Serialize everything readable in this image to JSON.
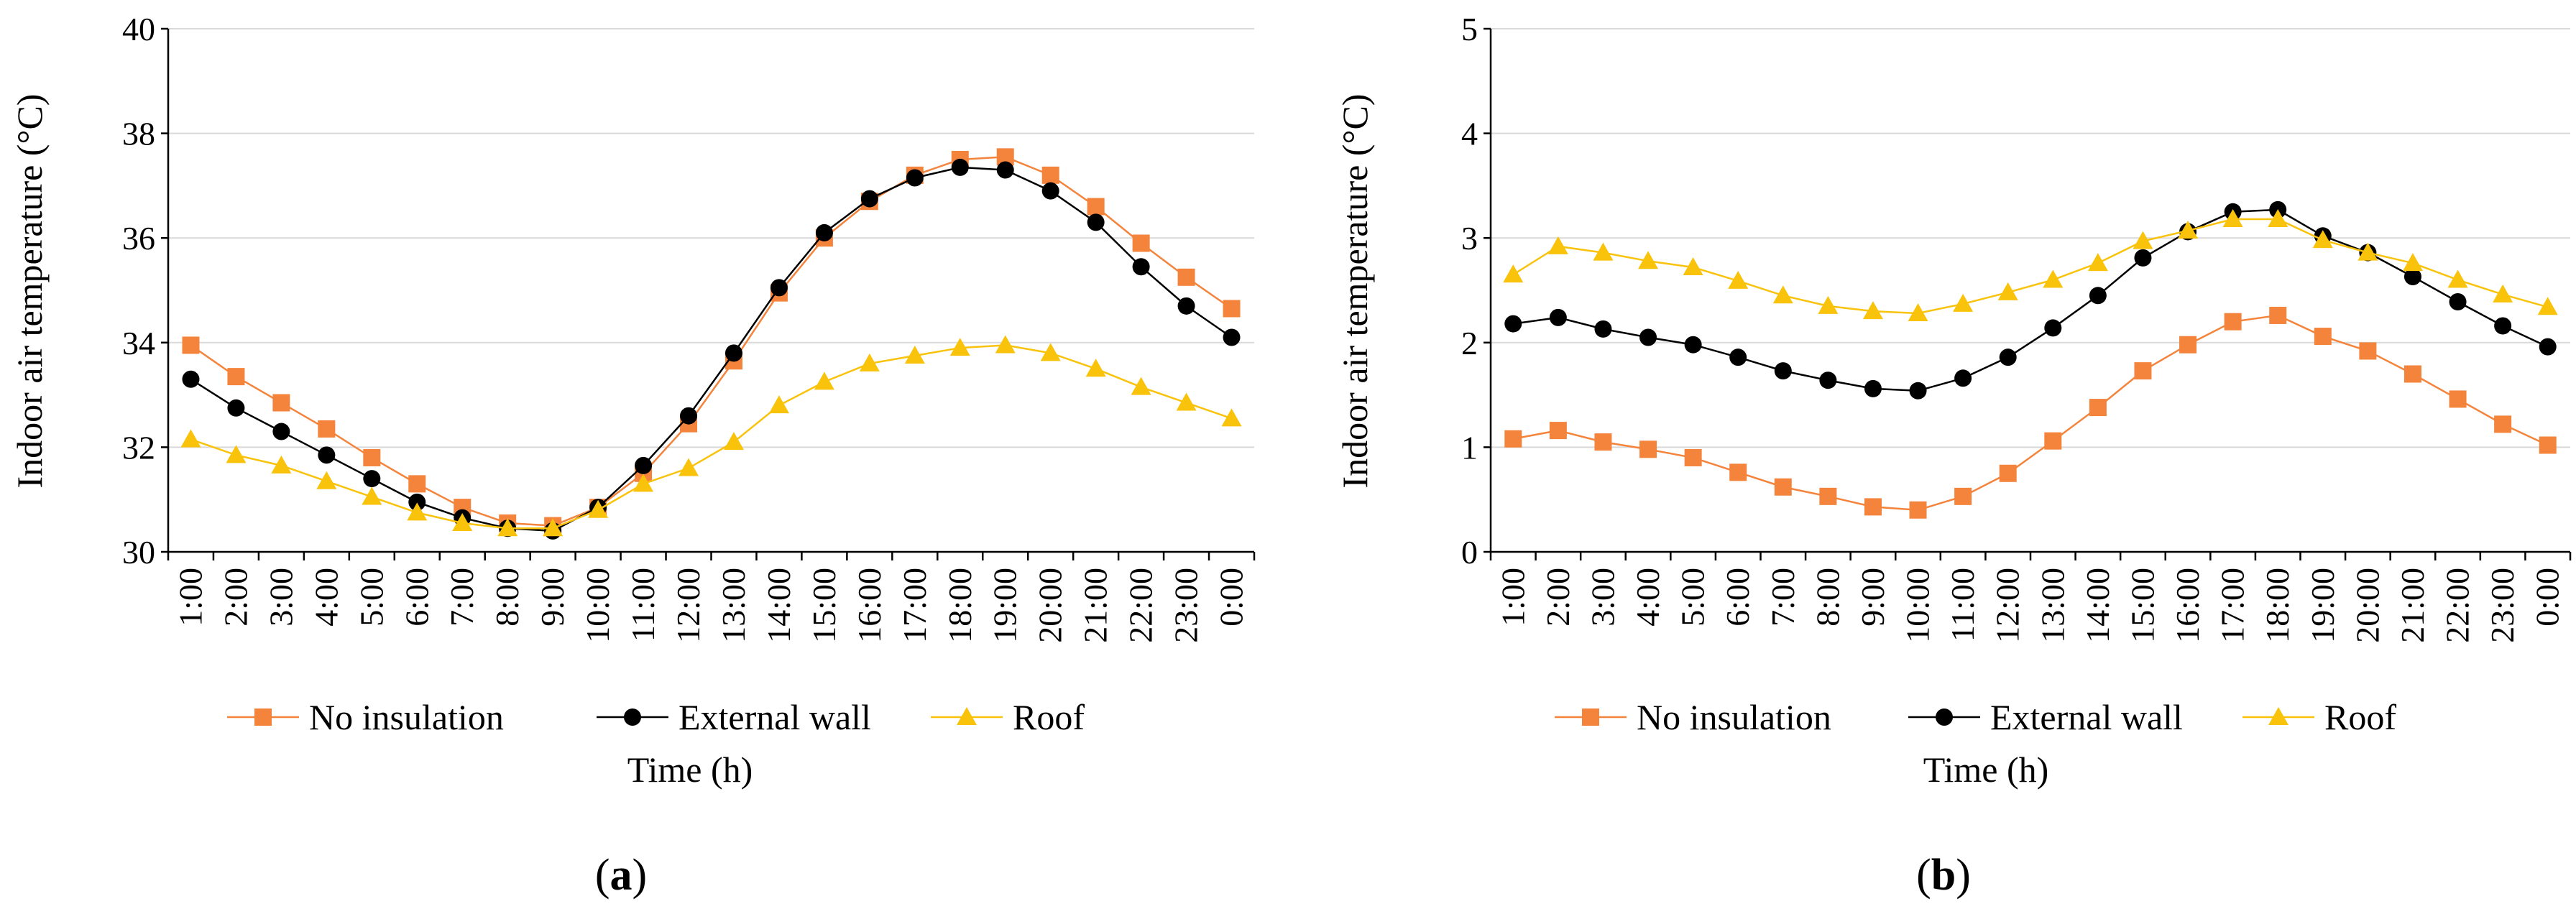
{
  "chart_data": [
    {
      "type": "line",
      "panel_label": "a",
      "title": "",
      "xlabel": "Time (h)",
      "ylabel": "Indoor air temperature (°C)",
      "ylim": [
        30,
        40
      ],
      "yticks": [
        "30",
        "32",
        "34",
        "36",
        "38",
        "40"
      ],
      "grid": "horizontal",
      "legend_position": "bottom",
      "categories": [
        "1:00",
        "2:00",
        "3:00",
        "4:00",
        "5:00",
        "6:00",
        "7:00",
        "8:00",
        "9:00",
        "10:00",
        "11:00",
        "12:00",
        "13:00",
        "14:00",
        "15:00",
        "16:00",
        "17:00",
        "18:00",
        "19:00",
        "20:00",
        "21:00",
        "22:00",
        "23:00",
        "0:00"
      ],
      "series": [
        {
          "name": "No insulation",
          "color": "#f4843c",
          "marker": "square",
          "values": [
            33.95,
            33.35,
            32.85,
            32.35,
            31.8,
            31.3,
            30.85,
            30.55,
            30.5,
            30.85,
            31.5,
            32.45,
            33.65,
            34.95,
            36.0,
            36.7,
            37.2,
            37.5,
            37.55,
            37.2,
            36.6,
            35.9,
            35.25,
            34.65
          ]
        },
        {
          "name": "External wall",
          "color": "#000000",
          "marker": "circle",
          "values": [
            33.3,
            32.75,
            32.3,
            31.85,
            31.4,
            30.95,
            30.65,
            30.45,
            30.4,
            30.85,
            31.65,
            32.6,
            33.8,
            35.05,
            36.1,
            36.75,
            37.15,
            37.35,
            37.3,
            36.9,
            36.3,
            35.45,
            34.7,
            34.1
          ]
        },
        {
          "name": "Roof",
          "color": "#f9c20b",
          "marker": "triangle",
          "values": [
            32.15,
            31.85,
            31.65,
            31.35,
            31.05,
            30.75,
            30.55,
            30.45,
            30.45,
            30.8,
            31.3,
            31.6,
            32.1,
            32.8,
            33.25,
            33.6,
            33.75,
            33.9,
            33.95,
            33.8,
            33.5,
            33.15,
            32.85,
            32.55
          ]
        }
      ]
    },
    {
      "type": "line",
      "panel_label": "b",
      "title": "",
      "xlabel": "Time (h)",
      "ylabel": "Indoor air temperature (°C)",
      "ylim": [
        0,
        5
      ],
      "yticks": [
        "0",
        "1",
        "2",
        "3",
        "4",
        "5"
      ],
      "grid": "horizontal",
      "legend_position": "bottom",
      "categories": [
        "1:00",
        "2:00",
        "3:00",
        "4:00",
        "5:00",
        "6:00",
        "7:00",
        "8:00",
        "9:00",
        "10:00",
        "11:00",
        "12:00",
        "13:00",
        "14:00",
        "15:00",
        "16:00",
        "17:00",
        "18:00",
        "19:00",
        "20:00",
        "21:00",
        "22:00",
        "23:00",
        "0:00"
      ],
      "series": [
        {
          "name": "No insulation",
          "color": "#f4843c",
          "marker": "square",
          "values": [
            1.08,
            1.16,
            1.05,
            0.98,
            0.9,
            0.76,
            0.62,
            0.53,
            0.43,
            0.4,
            0.53,
            0.75,
            1.06,
            1.38,
            1.73,
            1.98,
            2.2,
            2.26,
            2.06,
            1.92,
            1.7,
            1.46,
            1.22,
            1.02
          ]
        },
        {
          "name": "External wall",
          "color": "#000000",
          "marker": "circle",
          "values": [
            2.18,
            2.24,
            2.13,
            2.05,
            1.98,
            1.86,
            1.73,
            1.64,
            1.56,
            1.54,
            1.66,
            1.86,
            2.14,
            2.45,
            2.81,
            3.06,
            3.25,
            3.27,
            3.02,
            2.86,
            2.63,
            2.39,
            2.16,
            1.96
          ]
        },
        {
          "name": "Roof",
          "color": "#f9c20b",
          "marker": "triangle",
          "values": [
            2.65,
            2.92,
            2.86,
            2.78,
            2.72,
            2.59,
            2.45,
            2.35,
            2.3,
            2.28,
            2.37,
            2.48,
            2.6,
            2.76,
            2.97,
            3.07,
            3.18,
            3.18,
            2.98,
            2.86,
            2.76,
            2.6,
            2.46,
            2.34
          ]
        }
      ]
    }
  ]
}
